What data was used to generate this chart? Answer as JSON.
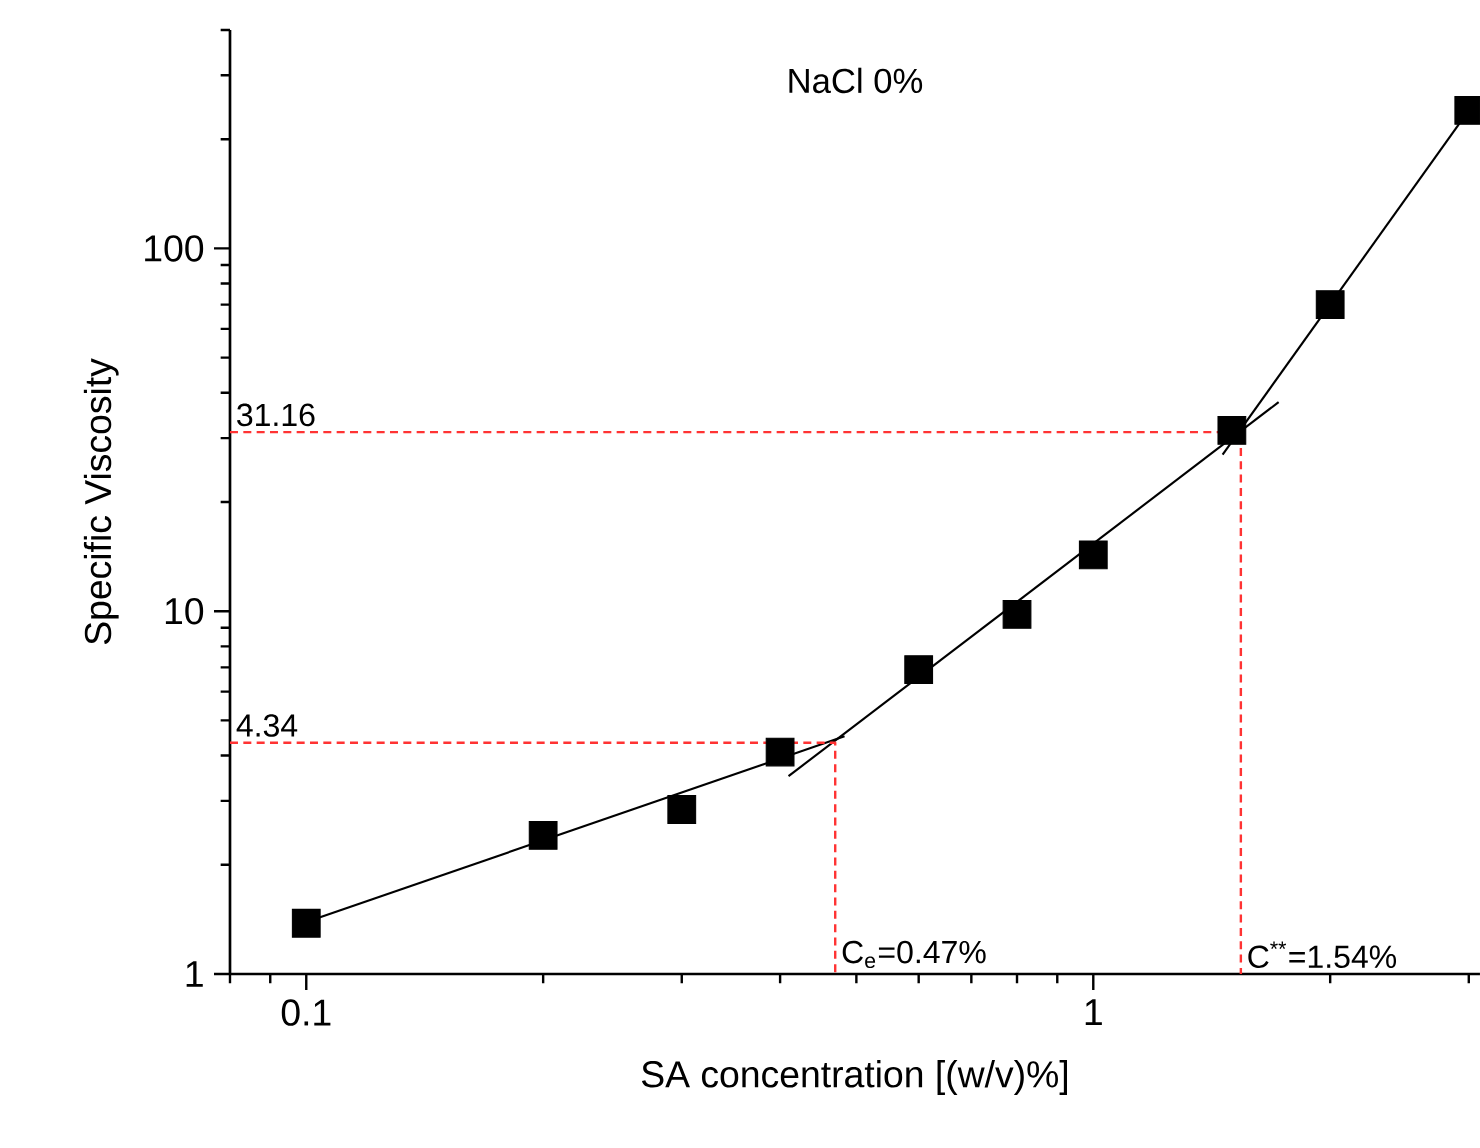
{
  "chart_data": {
    "type": "scatter",
    "title": "NaCl 0%",
    "xlabel": "SA concentration [(w/v)%]",
    "ylabel": "Specific Viscosity",
    "log": "xy",
    "grid": false,
    "xlim": [
      0.08,
      3.1
    ],
    "ylim": [
      1,
      400
    ],
    "xticks": [
      0.1,
      1
    ],
    "yticks": [
      1,
      10,
      100
    ],
    "series": [
      {
        "color": "#000000",
        "marker": "square",
        "x": [
          0.1,
          0.2,
          0.3,
          0.4,
          0.6,
          0.8,
          1,
          1.5,
          2,
          3
        ],
        "values": [
          1.38,
          2.41,
          2.84,
          4.09,
          6.9,
          9.8,
          14.3,
          31.5,
          70,
          240
        ]
      },
      {
        "type": "line",
        "color": "#000000",
        "line_style": "solid",
        "x": [
          0.1,
          0.483
        ],
        "values": [
          1.39,
          4.52
        ]
      },
      {
        "type": "line",
        "color": "#000000",
        "line_style": "solid",
        "x": [
          0.41,
          1.72
        ],
        "values": [
          3.51,
          37.7
        ]
      },
      {
        "type": "line",
        "color": "#000000",
        "line_style": "solid",
        "x": [
          1.46,
          3
        ],
        "values": [
          27,
          240
        ]
      },
      {
        "type": "line",
        "color": "#ff3333",
        "line_style": "dotted",
        "x": [
          0.08,
          0.47,
          0.47
        ],
        "values": [
          4.34,
          4.34,
          1
        ]
      },
      {
        "type": "line",
        "color": "#ff3333",
        "line_style": "dotted",
        "x": [
          0.08,
          1.54,
          1.54
        ],
        "values": [
          31.16,
          31.16,
          1
        ]
      }
    ],
    "annotations": [
      {
        "text": "31.16",
        "x": 0.08,
        "y": 31.16
      },
      {
        "text": "4.34",
        "x": 0.08,
        "y": 4.34
      },
      {
        "text": "C$_{e}$=0.47%",
        "x": 0.47,
        "y": 1
      },
      {
        "text": "C$^{**}$=1.54%",
        "x": 1.54,
        "y": 1
      }
    ]
  }
}
